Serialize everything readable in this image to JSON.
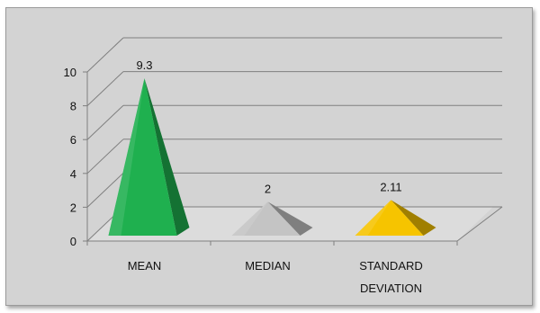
{
  "chart_data": {
    "type": "bar",
    "style": "3d-pyramid",
    "categories": [
      "MEAN",
      "MEDIAN",
      "STANDARD DEVIATION"
    ],
    "category_lines": [
      [
        "MEAN"
      ],
      [
        "MEDIAN"
      ],
      [
        "STANDARD",
        "DEVIATION"
      ]
    ],
    "values": [
      9.3,
      2,
      2.11
    ],
    "data_labels": [
      "9.3",
      "2",
      "2.11"
    ],
    "colors": [
      "#1fb04f",
      "#c4c4c4",
      "#f6c400"
    ],
    "ylim": [
      0,
      10
    ],
    "yticks": [
      "0",
      "2",
      "4",
      "6",
      "8",
      "10"
    ],
    "grid": true,
    "legend": "none",
    "title": "",
    "xlabel": "",
    "ylabel": ""
  }
}
